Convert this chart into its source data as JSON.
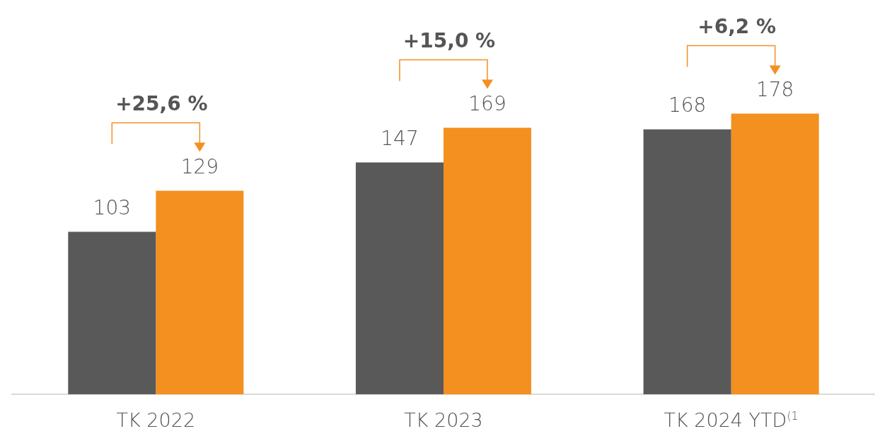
{
  "chart_data": {
    "type": "bar",
    "categories": [
      "TK 2022",
      "TK 2023",
      "TK 2024 YTD$^{(1}$"
    ],
    "series": [
      {
        "color": "#595959",
        "values": [
          103,
          147,
          168
        ]
      },
      {
        "color": "#f39020",
        "values": [
          129,
          169,
          178
        ]
      }
    ],
    "data_labels": true,
    "grid": false,
    "legend": false,
    "annotations": [
      "+25,6 %",
      "+15,0 %",
      "+6,2 %"
    ]
  }
}
